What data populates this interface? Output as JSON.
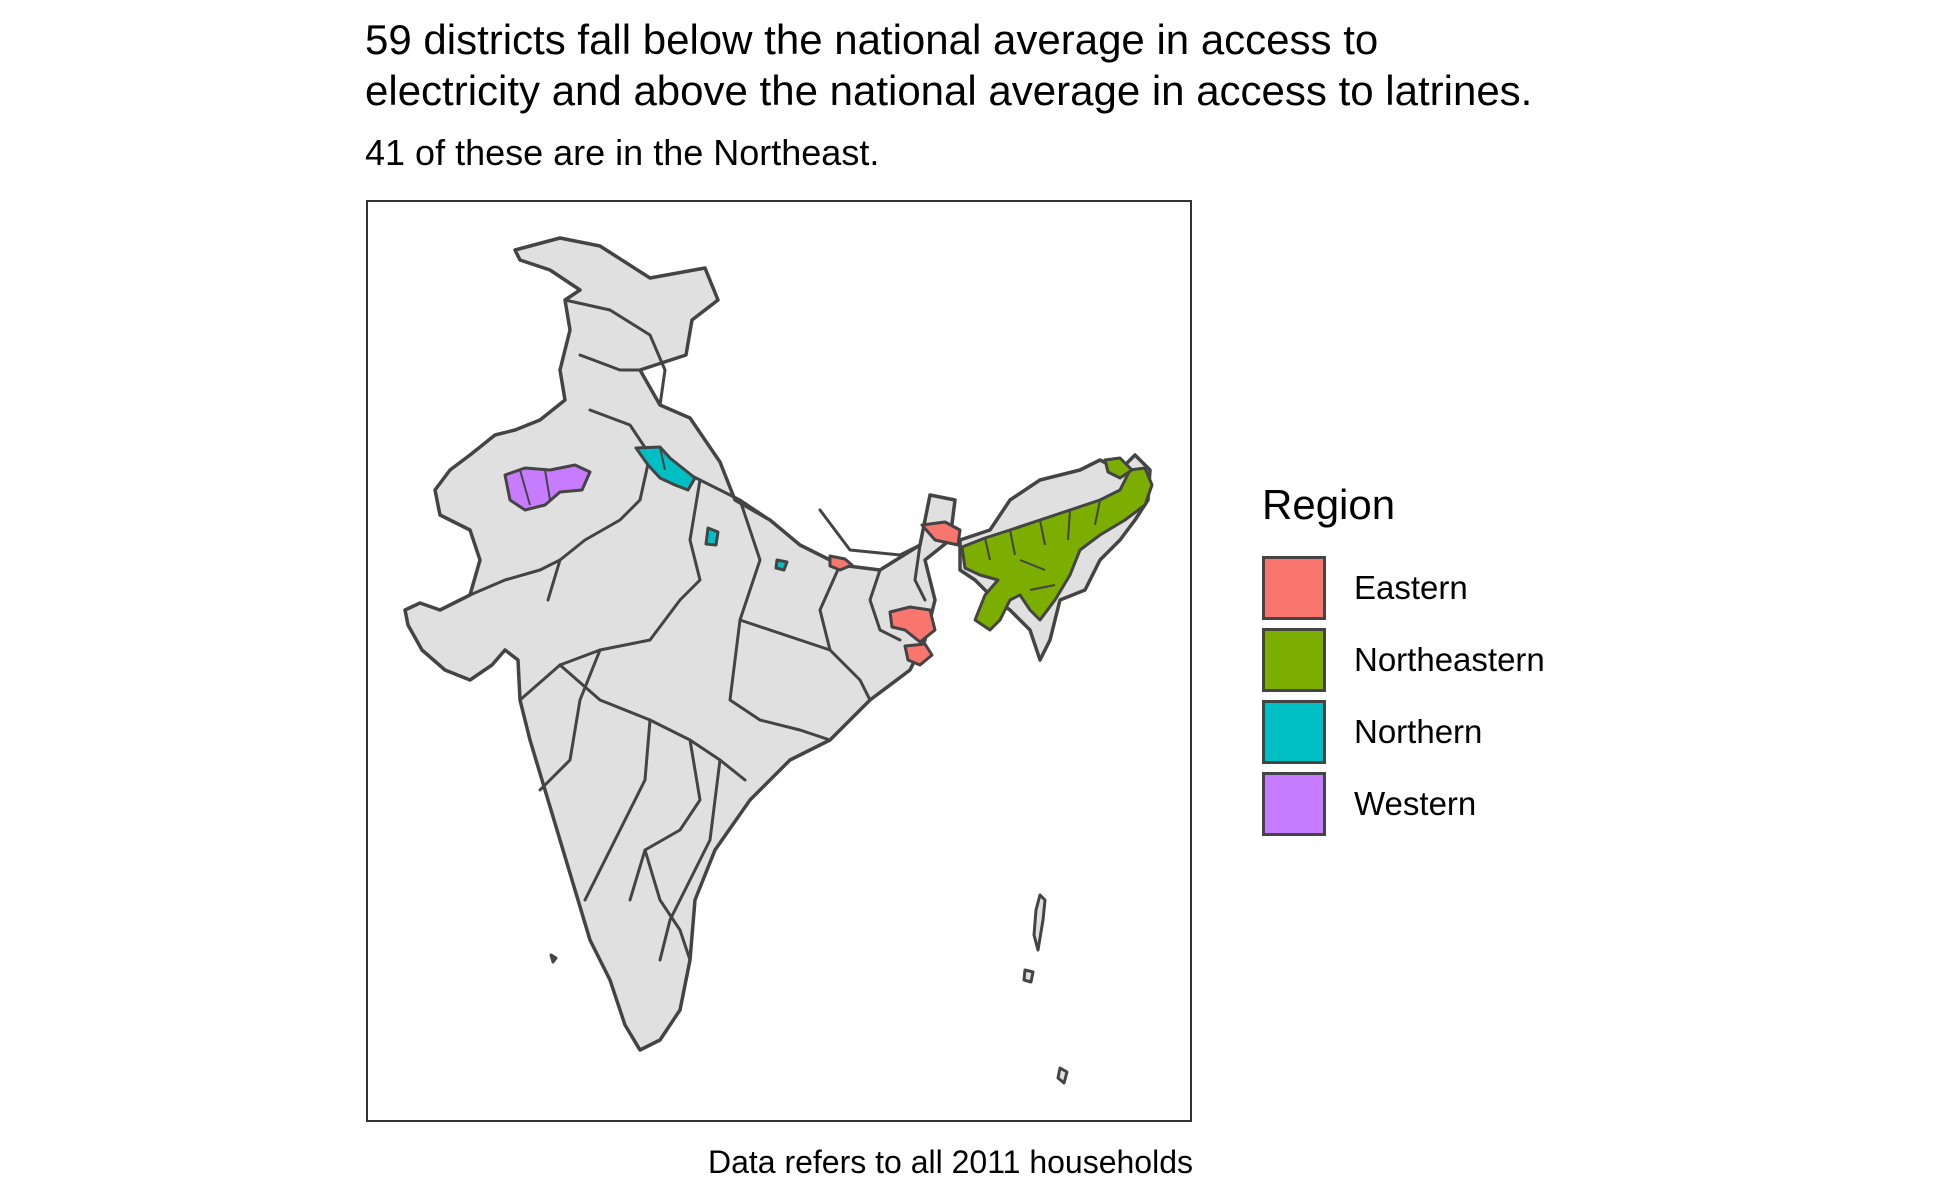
{
  "title": "59 districts fall below the national average in access to\nelectricity and above the national average in access to latrines.",
  "subtitle": "41 of these are in the Northeast.",
  "caption": "Data refers to all 2011 households",
  "legend": {
    "title": "Region",
    "items": [
      {
        "label": "Eastern",
        "color": "#F8766D"
      },
      {
        "label": "Northeastern",
        "color": "#7CAE00"
      },
      {
        "label": "Northern",
        "color": "#00BFC4"
      },
      {
        "label": "Western",
        "color": "#C77CFF"
      }
    ]
  },
  "map": {
    "base_fill": "#E0E0E0",
    "border_color": "#444444",
    "highlighted_regions": [
      "Eastern",
      "Northeastern",
      "Northern",
      "Western"
    ]
  }
}
